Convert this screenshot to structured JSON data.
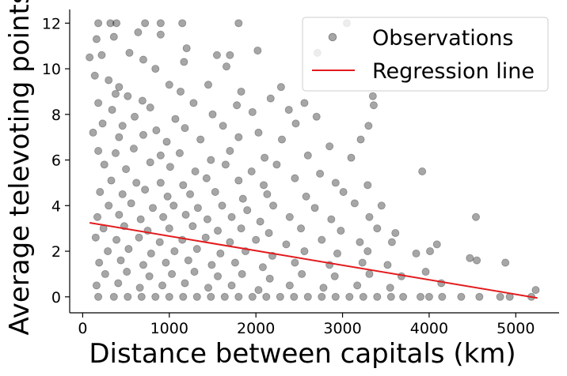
{
  "chart_data": {
    "type": "scatter",
    "xlabel": "Distance between capitals (km)",
    "ylabel": "Average televoting points",
    "xlim": [
      -150,
      5500
    ],
    "ylim": [
      -0.7,
      12.6
    ],
    "xticks": [
      0,
      1000,
      2000,
      3000,
      4000,
      5000
    ],
    "yticks": [
      0,
      2,
      4,
      6,
      8,
      10,
      12
    ],
    "grid": false,
    "legend": {
      "placement": "top-right",
      "entries": [
        {
          "label": "Observations",
          "kind": "marker",
          "color": "#000000"
        },
        {
          "label": "Regression line",
          "kind": "line",
          "color": "#e31a1c"
        }
      ]
    },
    "series": [
      {
        "name": "Observations",
        "kind": "scatter",
        "color": "#000000",
        "opacity": 0.35,
        "points": [
          [
            180,
            12.0
          ],
          [
            320,
            12.0
          ],
          [
            390,
            12.0
          ],
          [
            720,
            12.0
          ],
          [
            900,
            12.0
          ],
          [
            1150,
            12.0
          ],
          [
            1800,
            12.0
          ],
          [
            3050,
            12.0
          ],
          [
            160,
            11.3
          ],
          [
            360,
            11.4
          ],
          [
            640,
            11.6
          ],
          [
            900,
            11.5
          ],
          [
            1200,
            10.9
          ],
          [
            540,
            10.7
          ],
          [
            220,
            10.6
          ],
          [
            1550,
            10.6
          ],
          [
            700,
            10.4
          ],
          [
            1170,
            10.3
          ],
          [
            2020,
            10.8
          ],
          [
            1700,
            10.6
          ],
          [
            2710,
            10.7
          ],
          [
            80,
            10.5
          ],
          [
            840,
            10.0
          ],
          [
            1660,
            10.1
          ],
          [
            140,
            9.7
          ],
          [
            300,
            9.5
          ],
          [
            420,
            9.2
          ],
          [
            1000,
            9.3
          ],
          [
            1130,
            9.0
          ],
          [
            1450,
            9.3
          ],
          [
            1830,
            9.0
          ],
          [
            2290,
            9.2
          ],
          [
            380,
            8.9
          ],
          [
            520,
            8.8
          ],
          [
            690,
            8.6
          ],
          [
            1280,
            8.5
          ],
          [
            1780,
            8.4
          ],
          [
            2170,
            8.7
          ],
          [
            2380,
            8.2
          ],
          [
            2560,
            8.5
          ],
          [
            180,
            8.5
          ],
          [
            340,
            8.2
          ],
          [
            600,
            7.9
          ],
          [
            780,
            8.3
          ],
          [
            1070,
            7.8
          ],
          [
            1500,
            8.0
          ],
          [
            1960,
            8.1
          ],
          [
            2700,
            7.9
          ],
          [
            3360,
            8.4
          ],
          [
            230,
            7.6
          ],
          [
            460,
            7.5
          ],
          [
            850,
            7.3
          ],
          [
            1180,
            7.4
          ],
          [
            1620,
            7.5
          ],
          [
            2030,
            7.2
          ],
          [
            2460,
            7.6
          ],
          [
            3300,
            7.5
          ],
          [
            3350,
            8.8
          ],
          [
            120,
            7.2
          ],
          [
            420,
            7.0
          ],
          [
            700,
            7.1
          ],
          [
            970,
            6.8
          ],
          [
            1360,
            6.9
          ],
          [
            1800,
            7.0
          ],
          [
            2300,
            6.9
          ],
          [
            2850,
            6.6
          ],
          [
            3210,
            6.9
          ],
          [
            180,
            6.4
          ],
          [
            380,
            6.3
          ],
          [
            590,
            6.5
          ],
          [
            900,
            6.2
          ],
          [
            1120,
            6.3
          ],
          [
            1480,
            6.0
          ],
          [
            1700,
            6.4
          ],
          [
            2100,
            6.1
          ],
          [
            2600,
            6.2
          ],
          [
            3100,
            6.1
          ],
          [
            250,
            5.8
          ],
          [
            500,
            5.6
          ],
          [
            780,
            5.9
          ],
          [
            1010,
            5.7
          ],
          [
            1300,
            5.5
          ],
          [
            1650,
            5.8
          ],
          [
            1950,
            5.5
          ],
          [
            2240,
            5.8
          ],
          [
            2740,
            5.4
          ],
          [
            3920,
            5.5
          ],
          [
            330,
            5.1
          ],
          [
            620,
            5.0
          ],
          [
            900,
            5.0
          ],
          [
            1160,
            4.9
          ],
          [
            1430,
            5.2
          ],
          [
            1800,
            5.1
          ],
          [
            2090,
            4.9
          ],
          [
            2450,
            5.2
          ],
          [
            2920,
            5.0
          ],
          [
            3290,
            4.9
          ],
          [
            200,
            4.6
          ],
          [
            460,
            4.5
          ],
          [
            720,
            4.7
          ],
          [
            980,
            4.4
          ],
          [
            1240,
            4.5
          ],
          [
            1530,
            4.6
          ],
          [
            1850,
            4.3
          ],
          [
            2130,
            4.5
          ],
          [
            2580,
            4.4
          ],
          [
            3010,
            4.6
          ],
          [
            300,
            4.0
          ],
          [
            560,
            4.1
          ],
          [
            810,
            3.9
          ],
          [
            1050,
            4.0
          ],
          [
            1330,
            3.9
          ],
          [
            1610,
            4.0
          ],
          [
            1900,
            3.8
          ],
          [
            2200,
            4.0
          ],
          [
            2680,
            3.9
          ],
          [
            3140,
            4.1
          ],
          [
            3450,
            4.0
          ],
          [
            170,
            3.5
          ],
          [
            420,
            3.6
          ],
          [
            670,
            3.4
          ],
          [
            930,
            3.5
          ],
          [
            1190,
            3.6
          ],
          [
            1440,
            3.4
          ],
          [
            1720,
            3.5
          ],
          [
            2050,
            3.3
          ],
          [
            2390,
            3.5
          ],
          [
            2870,
            3.4
          ],
          [
            3310,
            3.5
          ],
          [
            4540,
            3.5
          ],
          [
            240,
            3.0
          ],
          [
            480,
            3.1
          ],
          [
            750,
            2.9
          ],
          [
            1000,
            3.0
          ],
          [
            1270,
            3.1
          ],
          [
            1560,
            2.9
          ],
          [
            1830,
            3.0
          ],
          [
            2150,
            2.8
          ],
          [
            2520,
            3.0
          ],
          [
            2980,
            2.9
          ],
          [
            3400,
            3.0
          ],
          [
            3610,
            2.8
          ],
          [
            150,
            2.6
          ],
          [
            390,
            2.5
          ],
          [
            650,
            2.6
          ],
          [
            890,
            2.4
          ],
          [
            1150,
            2.5
          ],
          [
            1420,
            2.6
          ],
          [
            1700,
            2.4
          ],
          [
            2000,
            2.5
          ],
          [
            2350,
            2.3
          ],
          [
            2760,
            2.5
          ],
          [
            3200,
            2.4
          ],
          [
            3570,
            2.4
          ],
          [
            4090,
            2.3
          ],
          [
            290,
            2.0
          ],
          [
            530,
            2.1
          ],
          [
            790,
            1.9
          ],
          [
            1060,
            2.0
          ],
          [
            1320,
            2.1
          ],
          [
            1590,
            1.9
          ],
          [
            1880,
            2.0
          ],
          [
            2190,
            1.8
          ],
          [
            2560,
            2.0
          ],
          [
            2940,
            1.9
          ],
          [
            3290,
            2.0
          ],
          [
            3850,
            1.9
          ],
          [
            4010,
            2.0
          ],
          [
            190,
            1.5
          ],
          [
            440,
            1.6
          ],
          [
            700,
            1.4
          ],
          [
            960,
            1.5
          ],
          [
            1220,
            1.6
          ],
          [
            1490,
            1.4
          ],
          [
            1760,
            1.5
          ],
          [
            2080,
            1.3
          ],
          [
            2450,
            1.5
          ],
          [
            2850,
            1.4
          ],
          [
            3230,
            1.5
          ],
          [
            3520,
            1.4
          ],
          [
            4470,
            1.7
          ],
          [
            4880,
            1.5
          ],
          [
            260,
            1.0
          ],
          [
            510,
            1.1
          ],
          [
            770,
            0.9
          ],
          [
            1030,
            1.0
          ],
          [
            1290,
            1.1
          ],
          [
            1560,
            0.9
          ],
          [
            1840,
            1.0
          ],
          [
            2160,
            0.8
          ],
          [
            2530,
            1.0
          ],
          [
            2910,
            0.9
          ],
          [
            3310,
            1.0
          ],
          [
            3680,
            0.9
          ],
          [
            3960,
            1.1
          ],
          [
            4550,
            1.6
          ],
          [
            160,
            0.5
          ],
          [
            410,
            0.6
          ],
          [
            660,
            0.4
          ],
          [
            920,
            0.5
          ],
          [
            1180,
            0.6
          ],
          [
            1450,
            0.4
          ],
          [
            1720,
            0.5
          ],
          [
            2030,
            0.3
          ],
          [
            2390,
            0.5
          ],
          [
            2780,
            0.4
          ],
          [
            3170,
            0.5
          ],
          [
            3550,
            0.4
          ],
          [
            4140,
            0.6
          ],
          [
            5230,
            0.3
          ],
          [
            180,
            0.0
          ],
          [
            360,
            0.0
          ],
          [
            520,
            0.0
          ],
          [
            680,
            0.0
          ],
          [
            840,
            0.0
          ],
          [
            1000,
            0.0
          ],
          [
            1160,
            0.0
          ],
          [
            1320,
            0.0
          ],
          [
            1480,
            0.0
          ],
          [
            1640,
            0.0
          ],
          [
            1800,
            0.0
          ],
          [
            1960,
            0.0
          ],
          [
            2120,
            0.0
          ],
          [
            2280,
            0.0
          ],
          [
            2440,
            0.0
          ],
          [
            2600,
            0.0
          ],
          [
            2760,
            0.0
          ],
          [
            2920,
            0.0
          ],
          [
            3080,
            0.0
          ],
          [
            3240,
            0.0
          ],
          [
            3400,
            0.0
          ],
          [
            3560,
            0.0
          ],
          [
            3700,
            0.0
          ],
          [
            3900,
            0.0
          ],
          [
            4000,
            0.0
          ],
          [
            4150,
            0.0
          ],
          [
            4370,
            0.0
          ],
          [
            4580,
            0.0
          ],
          [
            4820,
            0.0
          ],
          [
            4930,
            0.0
          ],
          [
            5180,
            0.0
          ]
        ]
      },
      {
        "name": "Regression line",
        "kind": "line",
        "color": "#e31a1c",
        "x": [
          80,
          5250
        ],
        "y": [
          3.25,
          -0.05
        ]
      }
    ]
  }
}
